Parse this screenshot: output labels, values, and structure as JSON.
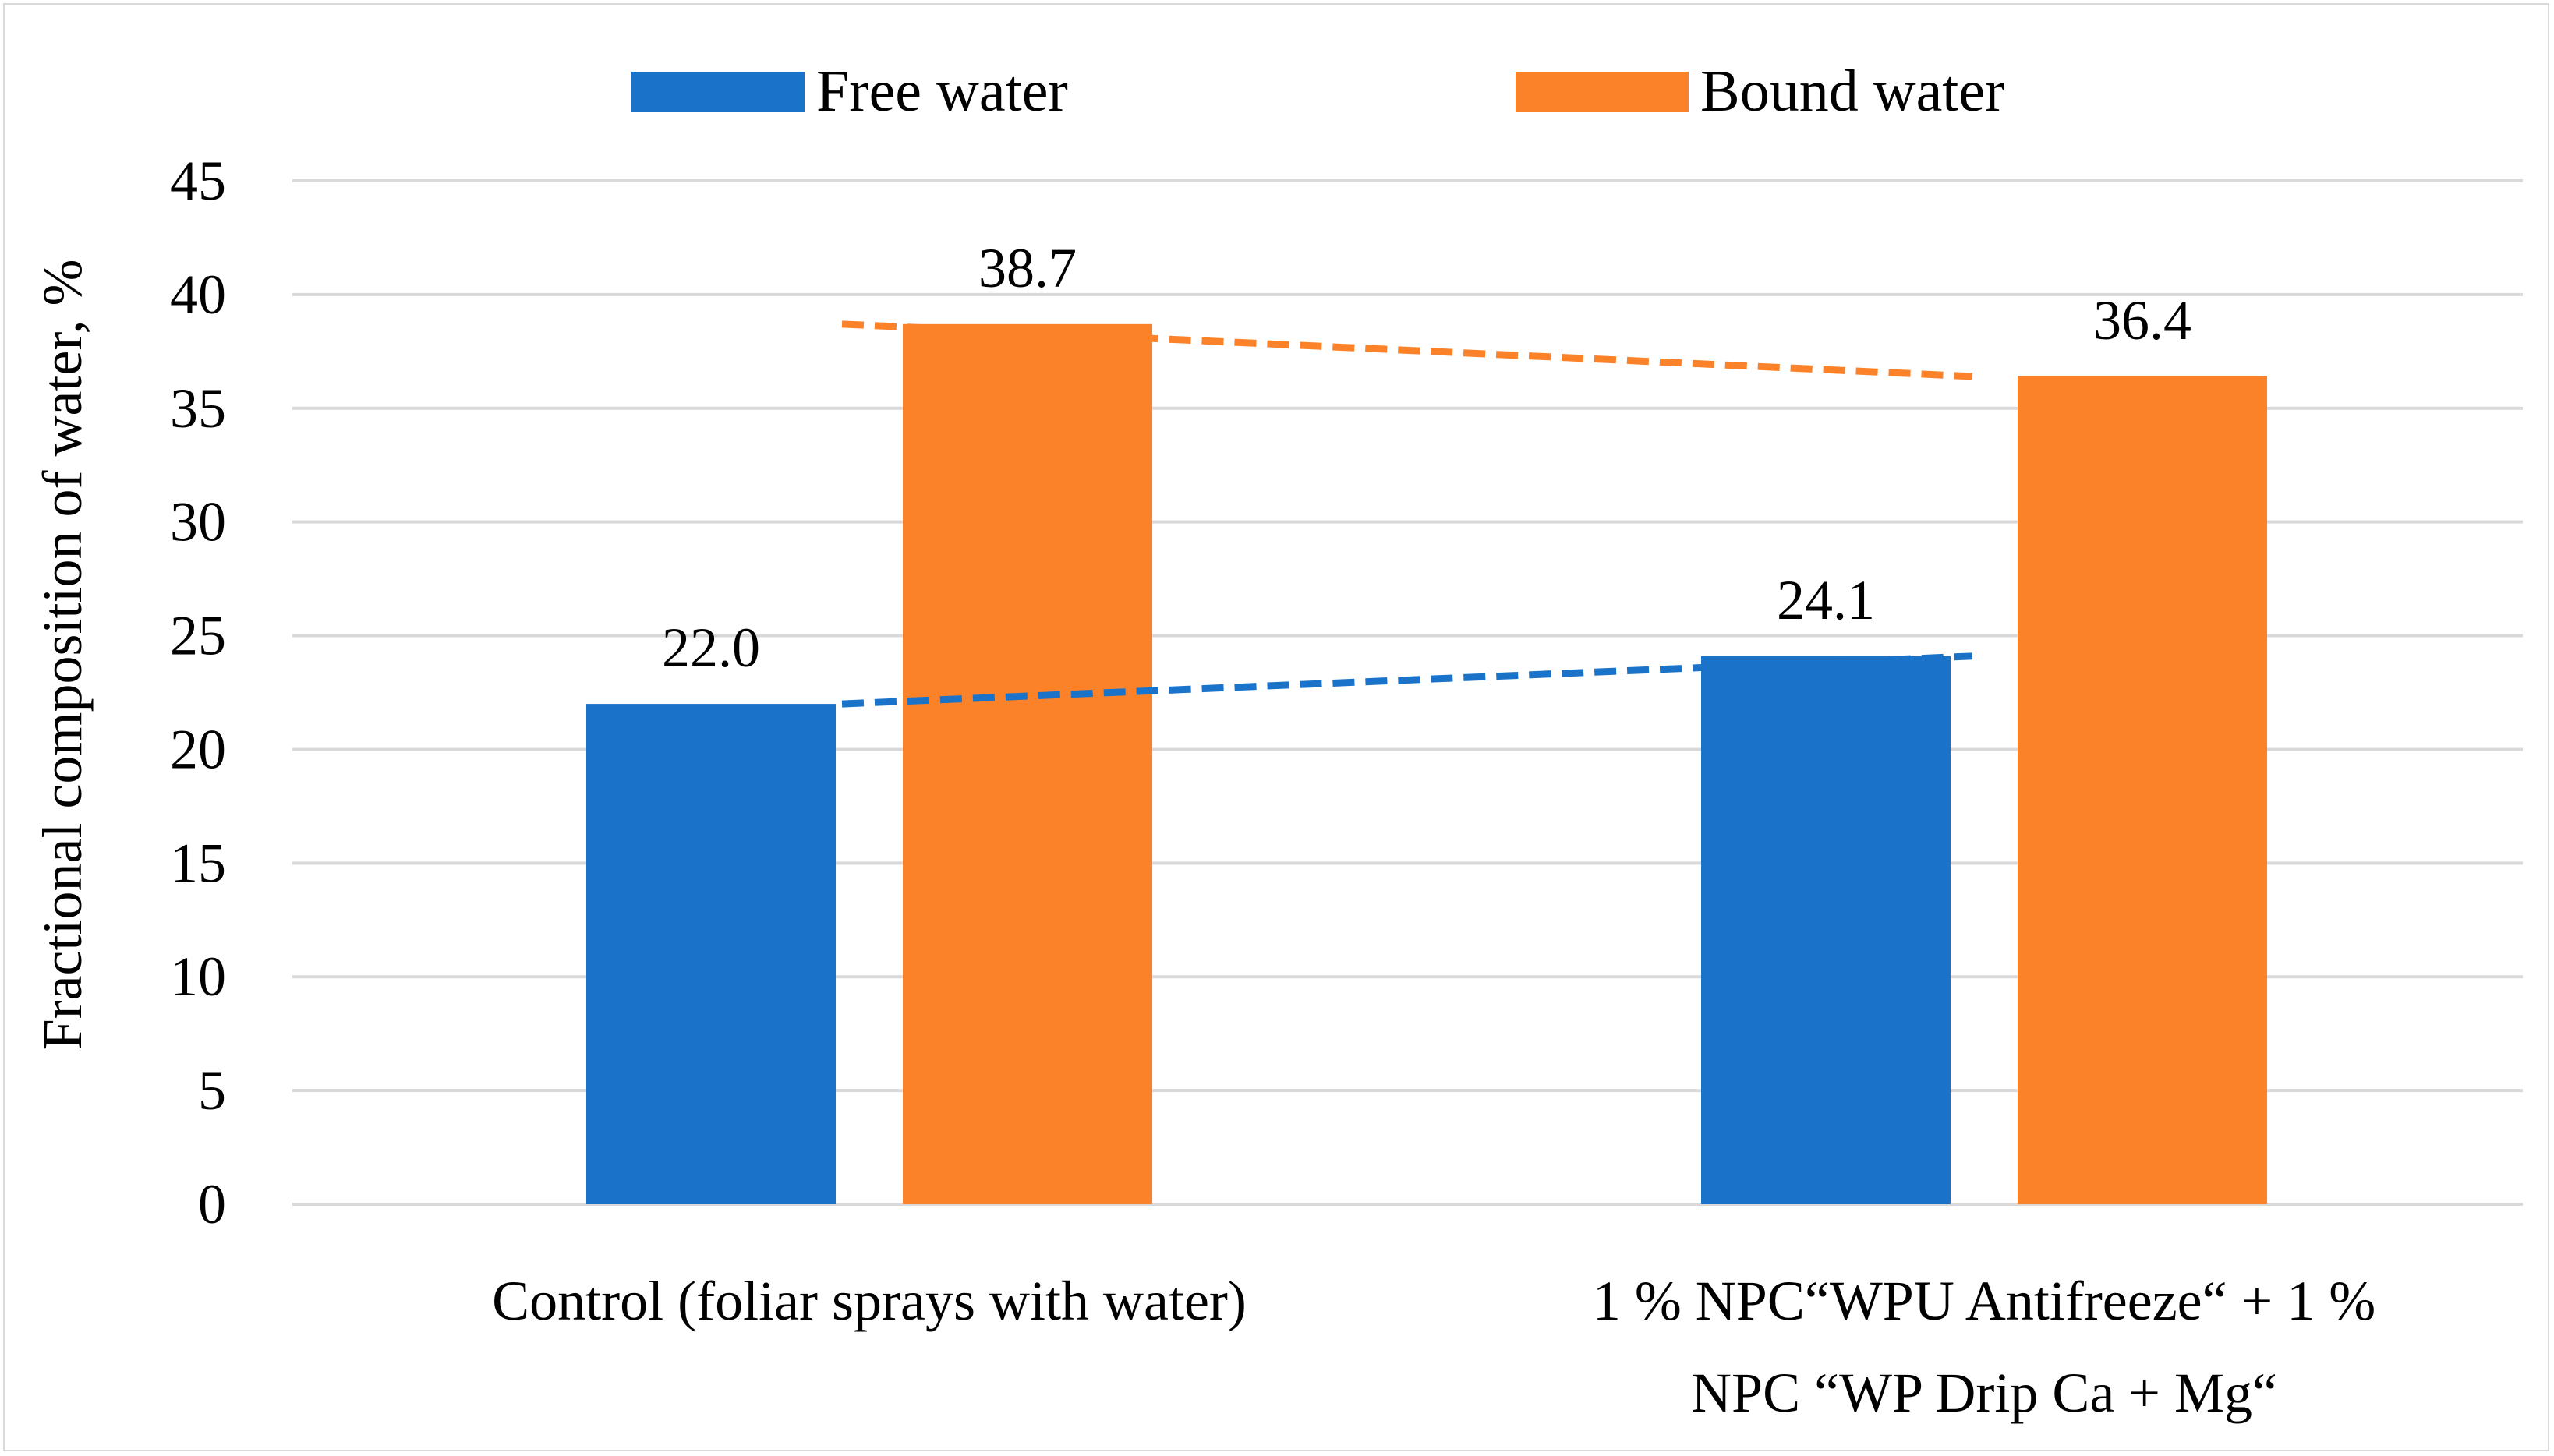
{
  "chart_data": {
    "type": "bar",
    "title": "",
    "xlabel": "",
    "ylabel": "Fractional composition of water, %",
    "ylim": [
      0,
      45
    ],
    "yticks": [
      "0",
      "5",
      "10",
      "15",
      "20",
      "25",
      "30",
      "35",
      "40",
      "45"
    ],
    "grid": true,
    "legend": "top-center",
    "categories": [
      [
        "Control (foliar sprays with water)"
      ],
      [
        "1 % NPC“WPU Antifreeze“ + 1 %",
        "NPC “WP Drip Ca + Mg“"
      ]
    ],
    "series": [
      {
        "name": "Free water",
        "color": "#1a73c8",
        "values": [
          22.0,
          24.1
        ],
        "labels": [
          "22.0",
          "24.1"
        ],
        "trendline": "linear"
      },
      {
        "name": "Bound water",
        "color": "#fb8228",
        "values": [
          38.7,
          36.4
        ],
        "labels": [
          "38.7",
          "36.4"
        ],
        "trendline": "linear"
      }
    ]
  }
}
